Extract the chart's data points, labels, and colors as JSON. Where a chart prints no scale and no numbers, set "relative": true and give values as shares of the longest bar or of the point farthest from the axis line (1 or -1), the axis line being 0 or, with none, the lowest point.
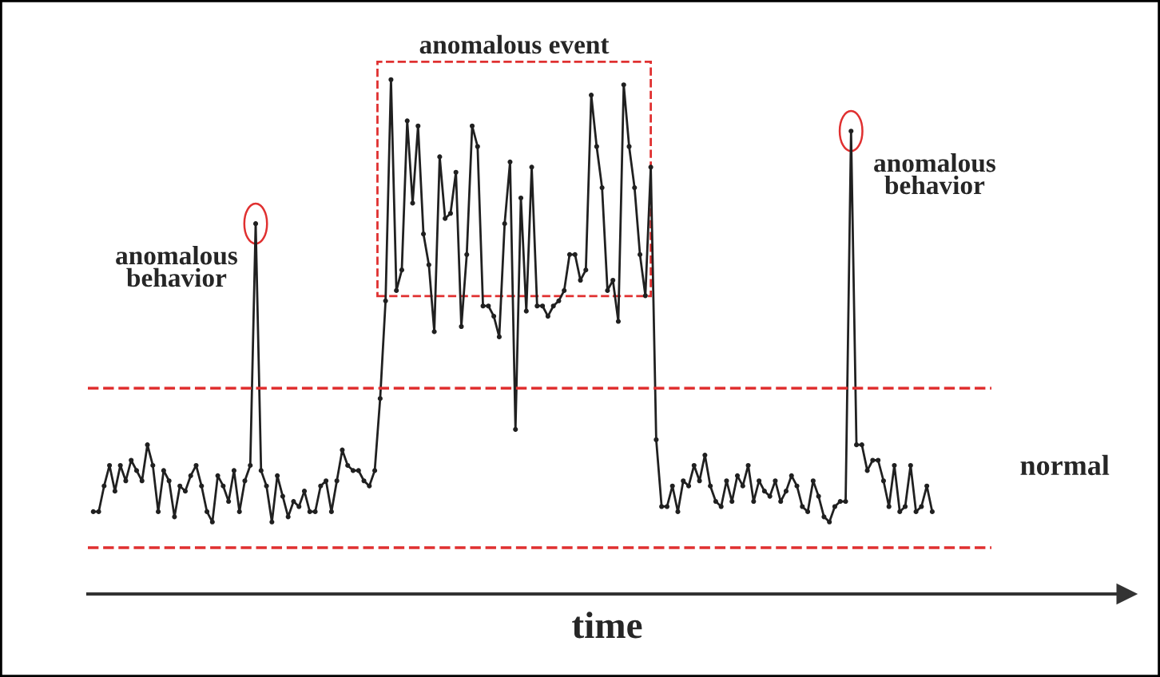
{
  "chart_data": {
    "type": "line",
    "relative": true,
    "xlabel": "time",
    "color": "#202020",
    "marker": "circle",
    "categories": [
      null,
      null,
      null,
      null,
      null,
      null,
      null,
      null,
      null,
      null,
      null,
      null,
      null,
      null,
      null,
      null,
      null,
      null,
      null,
      null,
      null,
      null,
      null,
      null,
      null,
      null,
      null,
      null,
      null,
      null,
      null,
      null,
      null,
      null,
      null,
      null,
      null,
      null,
      null,
      null,
      null,
      null,
      null,
      null,
      null,
      null,
      null,
      null,
      null,
      null,
      null,
      null,
      null,
      null,
      null,
      null,
      null,
      null,
      null,
      null,
      null,
      null,
      null,
      null,
      null,
      null,
      null,
      null,
      null,
      null,
      null,
      null,
      null,
      null,
      null,
      null,
      null,
      null,
      null,
      null,
      null,
      null,
      null,
      null,
      null,
      null,
      null,
      null,
      null,
      null,
      null,
      null,
      null,
      null,
      null,
      null,
      null,
      null,
      null,
      null,
      null,
      null,
      null,
      null,
      null,
      null,
      null,
      null,
      null,
      null,
      null,
      null,
      null,
      null,
      null,
      null,
      null,
      null,
      null,
      null,
      null,
      null,
      null,
      null,
      null,
      null,
      null,
      null,
      null,
      null,
      null,
      null,
      null,
      null,
      null,
      null,
      null,
      null,
      null,
      null,
      null,
      null,
      null,
      null,
      null,
      null,
      null,
      null,
      null,
      null,
      null,
      null,
      null,
      null,
      null,
      null
    ],
    "values": [
      0.16,
      0.16,
      0.21,
      0.25,
      0.2,
      0.25,
      0.22,
      0.26,
      0.24,
      0.22,
      0.29,
      0.25,
      0.16,
      0.24,
      0.22,
      0.15,
      0.21,
      0.2,
      0.23,
      0.25,
      0.21,
      0.16,
      0.14,
      0.23,
      0.21,
      0.18,
      0.24,
      0.16,
      0.22,
      0.25,
      0.72,
      0.24,
      0.21,
      0.14,
      0.23,
      0.19,
      0.15,
      0.18,
      0.17,
      0.2,
      0.16,
      0.16,
      0.21,
      0.22,
      0.16,
      0.22,
      0.28,
      0.25,
      0.24,
      0.24,
      0.22,
      0.21,
      0.24,
      0.38,
      0.57,
      1.0,
      0.59,
      0.63,
      0.92,
      0.76,
      0.91,
      0.7,
      0.64,
      0.51,
      0.85,
      0.73,
      0.74,
      0.82,
      0.52,
      0.66,
      0.91,
      0.87,
      0.56,
      0.56,
      0.54,
      0.5,
      0.72,
      0.84,
      0.32,
      0.77,
      0.55,
      0.83,
      0.56,
      0.56,
      0.54,
      0.56,
      0.57,
      0.59,
      0.66,
      0.66,
      0.61,
      0.63,
      0.97,
      0.87,
      0.79,
      0.59,
      0.61,
      0.53,
      0.99,
      0.87,
      0.79,
      0.66,
      0.58,
      0.83,
      0.3,
      0.17,
      0.17,
      0.21,
      0.16,
      0.22,
      0.21,
      0.25,
      0.22,
      0.27,
      0.21,
      0.18,
      0.17,
      0.22,
      0.18,
      0.23,
      0.21,
      0.25,
      0.18,
      0.22,
      0.2,
      0.19,
      0.22,
      0.18,
      0.2,
      0.23,
      0.21,
      0.17,
      0.16,
      0.22,
      0.19,
      0.15,
      0.14,
      0.17,
      0.18,
      0.18,
      0.9,
      0.29,
      0.29,
      0.24,
      0.26,
      0.26,
      0.22,
      0.17,
      0.25,
      0.16,
      0.17,
      0.25,
      0.16,
      0.17,
      0.21,
      0.16
    ],
    "ref_lines": [
      {
        "axis": "y",
        "value": 0.4,
        "color": "#e03030",
        "line_style": "dashed"
      },
      {
        "axis": "y",
        "value": 0.09,
        "color": "#e03030",
        "line_style": "dashed"
      }
    ],
    "annotations": [
      "anomalous\nbehavior",
      "anomalous event",
      "anomalous\nbehavior",
      "normal"
    ]
  }
}
